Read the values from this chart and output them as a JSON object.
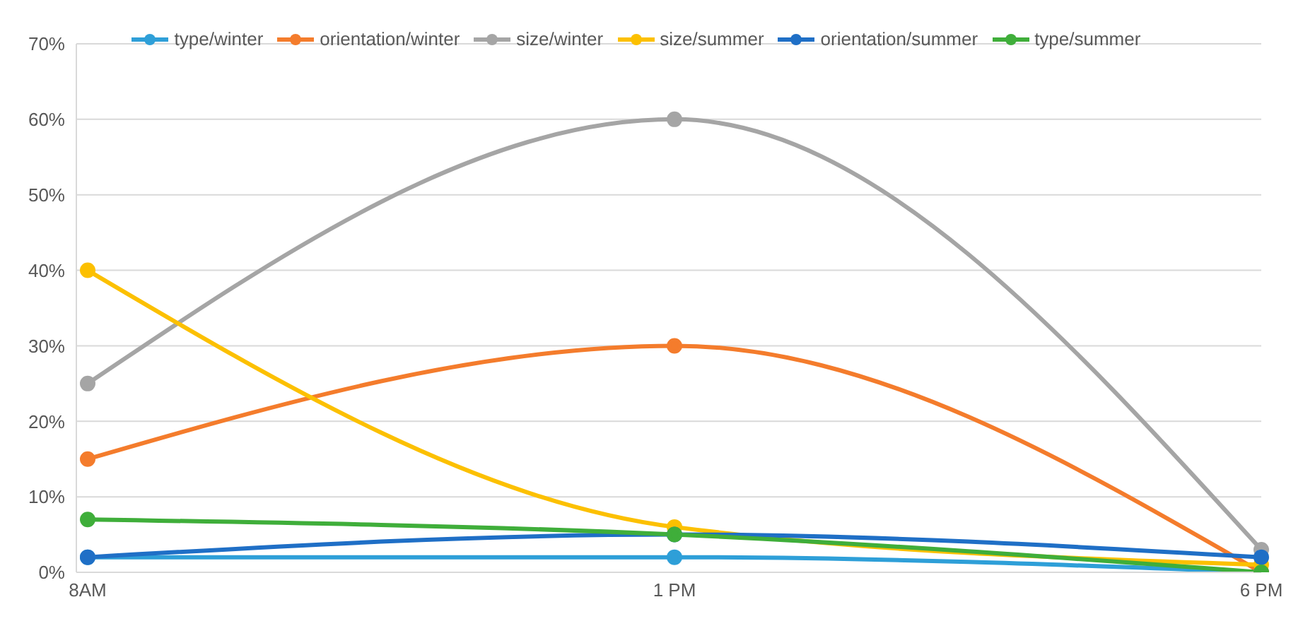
{
  "chart_data": {
    "type": "line",
    "categories": [
      "8AM",
      "1 PM",
      "6 PM"
    ],
    "series": [
      {
        "name": "type/winter",
        "color": "#2e9fd8",
        "values": [
          2,
          2,
          0
        ]
      },
      {
        "name": "orientation/winter",
        "color": "#f47c2c",
        "values": [
          15,
          30,
          0
        ]
      },
      {
        "name": "size/winter",
        "color": "#a5a5a5",
        "values": [
          25,
          60,
          3
        ]
      },
      {
        "name": "size/summer",
        "color": "#fcc000",
        "values": [
          40,
          6,
          1
        ]
      },
      {
        "name": "orientation/summer",
        "color": "#1f6fc6",
        "values": [
          2,
          5,
          2
        ]
      },
      {
        "name": "type/summer",
        "color": "#3fae3a",
        "values": [
          7,
          5,
          0
        ]
      }
    ],
    "ylim": [
      0,
      70
    ],
    "yticks": [
      {
        "value": 0,
        "label": "0%"
      },
      {
        "value": 10,
        "label": "10%"
      },
      {
        "value": 20,
        "label": "20%"
      },
      {
        "value": 30,
        "label": "30%"
      },
      {
        "value": 40,
        "label": "40%"
      },
      {
        "value": 50,
        "label": "50%"
      },
      {
        "value": 60,
        "label": "60%"
      },
      {
        "value": 70,
        "label": "70%"
      }
    ],
    "grid": "y",
    "legend": "top",
    "marker": "circle",
    "line_style": "solid"
  }
}
